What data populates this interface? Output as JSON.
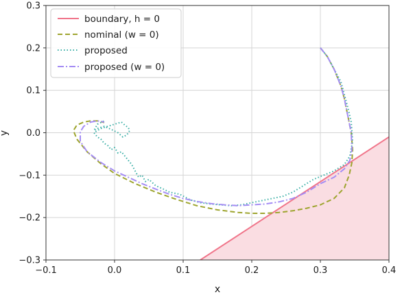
{
  "chart_data": {
    "type": "line",
    "xlabel": "x",
    "ylabel": "y",
    "xlim": [
      -0.1,
      0.4
    ],
    "ylim": [
      -0.3,
      0.3
    ],
    "xticks": [
      -0.1,
      0.0,
      0.1,
      0.2,
      0.3,
      0.4
    ],
    "yticks": [
      -0.3,
      -0.2,
      -0.1,
      0.0,
      0.1,
      0.2,
      0.3
    ],
    "xtick_labels": [
      "−0.1",
      "0.0",
      "0.1",
      "0.2",
      "0.3",
      "0.4"
    ],
    "ytick_labels": [
      "−0.3",
      "−0.2",
      "−0.1",
      "0.0",
      "0.1",
      "0.2",
      "0.3"
    ],
    "grid": true,
    "legend_position": "top-left",
    "legend": [
      {
        "key": "boundary",
        "label": "boundary, h = 0"
      },
      {
        "key": "nominal",
        "label": "nominal (w = 0)"
      },
      {
        "key": "proposed",
        "label": "proposed"
      },
      {
        "key": "proposed_w0",
        "label": "proposed (w = 0)"
      }
    ],
    "colors": {
      "boundary": "#f0758a",
      "boundary_fill": "#fadde2",
      "nominal": "#9da42d",
      "proposed": "#36ada4",
      "proposed_w0": "#a48cf4"
    },
    "series": [
      {
        "key": "boundary",
        "x": [
          0.125,
          0.4
        ],
        "y": [
          -0.3,
          -0.01
        ]
      },
      {
        "key": "nominal",
        "x": [
          0.3,
          0.31,
          0.32,
          0.33,
          0.335,
          0.34,
          0.345,
          0.347,
          0.346,
          0.342,
          0.335,
          0.32,
          0.3,
          0.28,
          0.26,
          0.24,
          0.22,
          0.2,
          0.18,
          0.15,
          0.12,
          0.09,
          0.06,
          0.03,
          0.0,
          -0.02,
          -0.04,
          -0.055,
          -0.06,
          -0.055,
          -0.045,
          -0.035,
          -0.025,
          -0.015
        ],
        "y": [
          0.2,
          0.18,
          0.15,
          0.11,
          0.08,
          0.04,
          0.0,
          -0.04,
          -0.07,
          -0.1,
          -0.13,
          -0.155,
          -0.17,
          -0.178,
          -0.184,
          -0.188,
          -0.19,
          -0.19,
          -0.188,
          -0.182,
          -0.172,
          -0.157,
          -0.14,
          -0.12,
          -0.096,
          -0.073,
          -0.045,
          -0.015,
          0.005,
          0.018,
          0.025,
          0.028,
          0.028,
          0.024
        ]
      },
      {
        "key": "proposed",
        "x": [
          0.3,
          0.31,
          0.32,
          0.33,
          0.335,
          0.34,
          0.345,
          0.347,
          0.343,
          0.335,
          0.32,
          0.305,
          0.29,
          0.275,
          0.26,
          0.245,
          0.23,
          0.215,
          0.2,
          0.185,
          0.17,
          0.155,
          0.14,
          0.125,
          0.11,
          0.095,
          0.08,
          0.07,
          0.06,
          0.05,
          0.045,
          0.04,
          0.035,
          0.03,
          0.025,
          0.02,
          0.015,
          0.01,
          0.005,
          0.0,
          -0.005,
          -0.01,
          -0.015,
          -0.02,
          -0.025,
          -0.03,
          -0.025,
          -0.02,
          -0.01,
          0.0,
          0.01,
          0.015,
          0.02,
          0.022,
          0.018,
          0.012,
          0.005,
          -0.005,
          -0.015,
          -0.025,
          -0.03,
          -0.025,
          -0.015
        ],
        "y": [
          0.2,
          0.18,
          0.15,
          0.12,
          0.09,
          0.06,
          0.025,
          -0.02,
          -0.055,
          -0.075,
          -0.09,
          -0.1,
          -0.11,
          -0.125,
          -0.14,
          -0.15,
          -0.155,
          -0.16,
          -0.165,
          -0.17,
          -0.172,
          -0.17,
          -0.168,
          -0.165,
          -0.158,
          -0.145,
          -0.14,
          -0.132,
          -0.125,
          -0.11,
          -0.115,
          -0.1,
          -0.105,
          -0.09,
          -0.075,
          -0.065,
          -0.055,
          -0.045,
          -0.048,
          -0.035,
          -0.04,
          -0.03,
          -0.025,
          -0.015,
          -0.01,
          0.0,
          0.005,
          0.01,
          0.015,
          0.02,
          0.025,
          0.018,
          0.012,
          0.005,
          -0.005,
          -0.01,
          0.0,
          0.008,
          0.015,
          0.01,
          0.005,
          0.02,
          0.028
        ]
      },
      {
        "key": "proposed_w0",
        "x": [
          0.3,
          0.31,
          0.32,
          0.33,
          0.335,
          0.34,
          0.345,
          0.346,
          0.343,
          0.335,
          0.32,
          0.3,
          0.28,
          0.26,
          0.24,
          0.22,
          0.2,
          0.18,
          0.16,
          0.14,
          0.12,
          0.1,
          0.08,
          0.06,
          0.04,
          0.02,
          0.0,
          -0.02,
          -0.04,
          -0.05,
          -0.05,
          -0.045,
          -0.035,
          -0.025,
          -0.015
        ],
        "y": [
          0.2,
          0.18,
          0.15,
          0.11,
          0.08,
          0.04,
          0.0,
          -0.04,
          -0.065,
          -0.085,
          -0.105,
          -0.12,
          -0.14,
          -0.155,
          -0.163,
          -0.168,
          -0.17,
          -0.172,
          -0.17,
          -0.167,
          -0.162,
          -0.155,
          -0.145,
          -0.133,
          -0.12,
          -0.105,
          -0.09,
          -0.07,
          -0.045,
          -0.02,
          0.002,
          0.015,
          0.025,
          0.028,
          0.025
        ]
      }
    ]
  }
}
